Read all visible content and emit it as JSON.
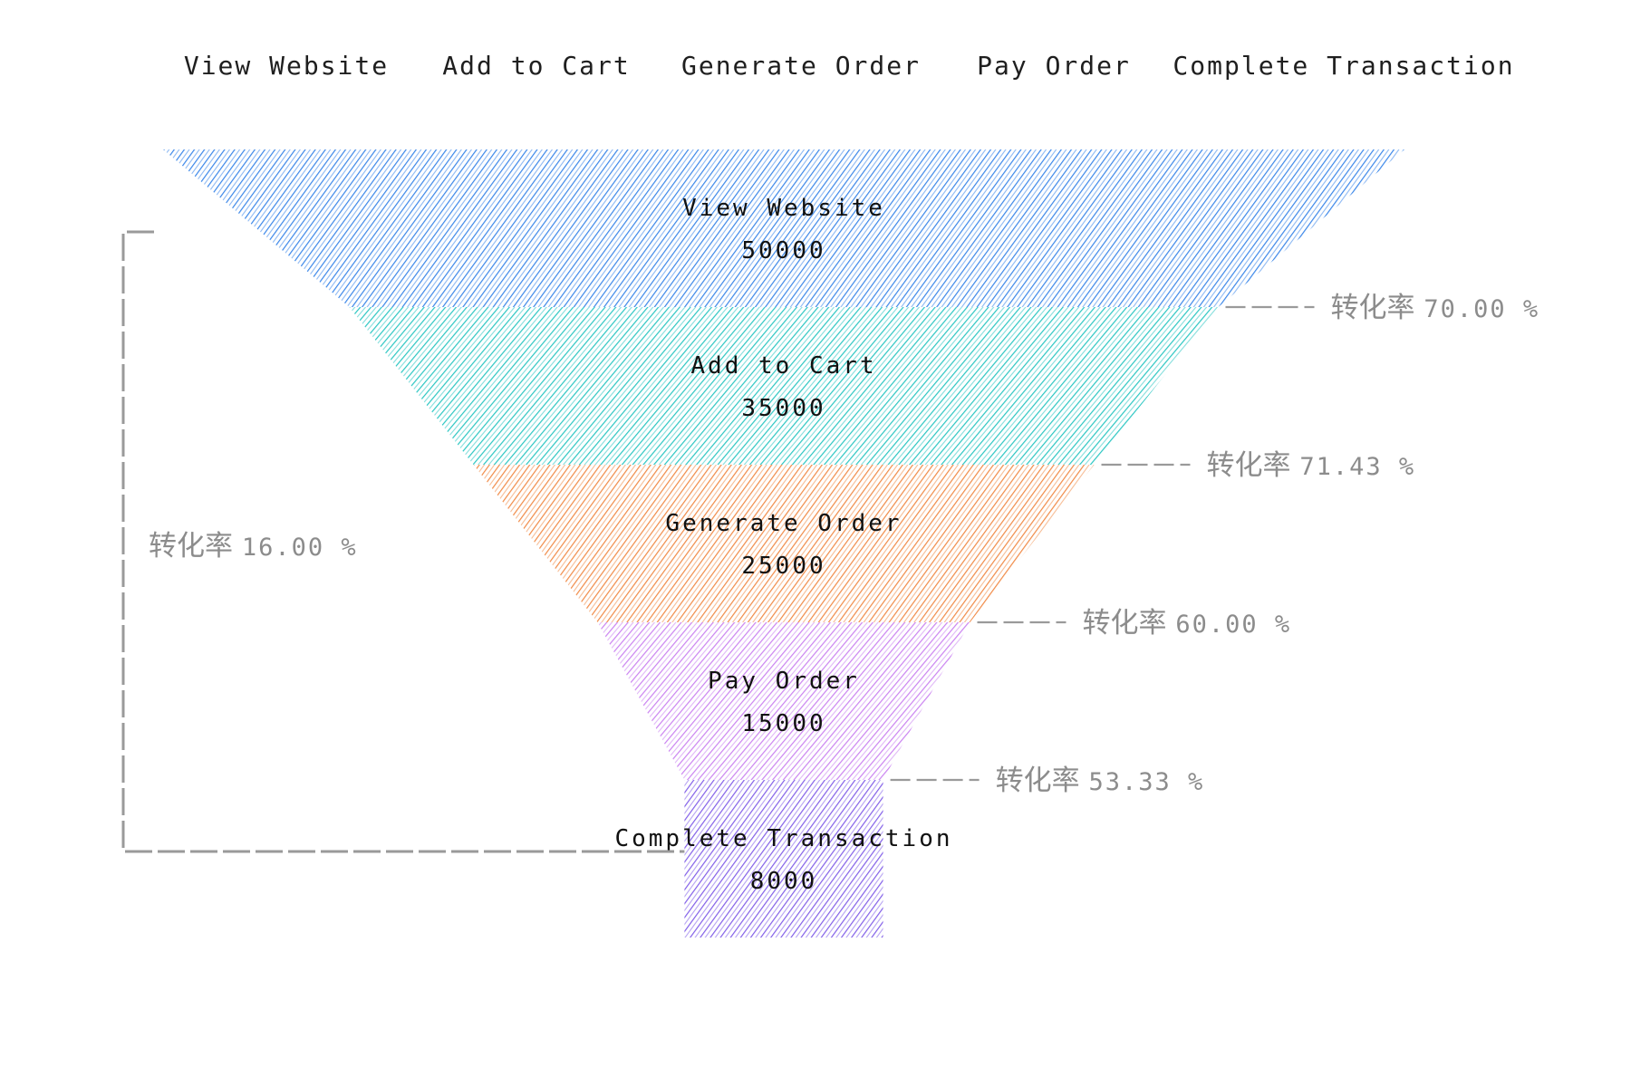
{
  "chart_data": {
    "type": "funnel",
    "legend": [
      "View Website",
      "Add to Cart",
      "Generate Order",
      "Pay Order",
      "Complete Transaction"
    ],
    "stages": [
      {
        "name": "View Website",
        "value": 50000,
        "color": "#2f7fe8"
      },
      {
        "name": "Add to Cart",
        "value": 35000,
        "color": "#1ec3bf"
      },
      {
        "name": "Generate Order",
        "value": 25000,
        "color": "#f0843c"
      },
      {
        "name": "Pay Order",
        "value": 15000,
        "color": "#c77bf0"
      },
      {
        "name": "Complete Transaction",
        "value": 8000,
        "color": "#7a55e6"
      }
    ],
    "conversion_label": "转化率",
    "conversion_rates": [
      "70.00 %",
      "71.43 %",
      "60.00 %",
      "53.33 %"
    ],
    "overall_conversion": "16.00 %",
    "annotation_color": "#9a9a9a"
  }
}
